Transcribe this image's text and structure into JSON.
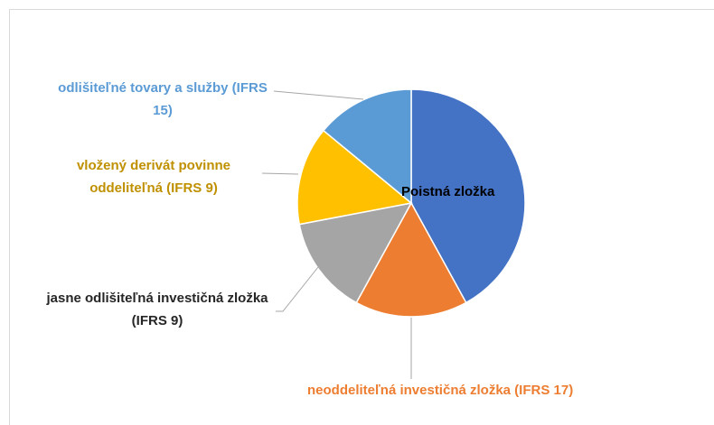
{
  "chart_data": {
    "type": "pie",
    "categories": [
      "Poistná zložka",
      "neoddeliteľná investičná zložka (IFRS 17)",
      "jasne odlišiteľná investičná zložka (IFRS 9)",
      "vložený derivát povinne oddeliteľná (IFRS 9)",
      "odlišiteľné tovary a služby (IFRS 15)"
    ],
    "values": [
      42,
      16,
      14,
      14,
      14
    ],
    "colors": [
      "#4472c4",
      "#ed7d31",
      "#a5a5a5",
      "#ffc000",
      "#5b9bd5"
    ],
    "label_colors": [
      "#000000",
      "#ed7d31",
      "#262626",
      "#bf9000",
      "#5b9bd5"
    ]
  }
}
